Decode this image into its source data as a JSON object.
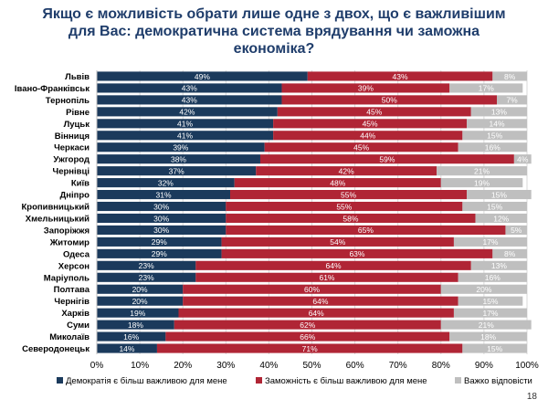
{
  "title_lines": [
    "Якщо є можливість обрати лише одне з двох, що є важливішим",
    "для Вас: демократична система врядування чи заможна",
    "економіка?"
  ],
  "page_number": "18",
  "colors": {
    "democracy": "#1b3a5c",
    "wealth": "#b02535",
    "hard": "#bfbfbf",
    "grid": "#d9d9d9"
  },
  "chart_data": {
    "type": "bar",
    "orientation": "horizontal",
    "stacked": true,
    "title": "Якщо є можливість обрати лише одне з двох, що є важливішим для Вас: демократична система врядування чи заможна економіка?",
    "categories": [
      "Львів",
      "Івано-Франківськ",
      "Тернопіль",
      "Рівне",
      "Луцьк",
      "Вінниця",
      "Черкаси",
      "Ужгород",
      "Чернівці",
      "Київ",
      "Дніпро",
      "Кропивницький",
      "Хмельницький",
      "Запоріжжя",
      "Житомир",
      "Одеса",
      "Херсон",
      "Маріуполь",
      "Полтава",
      "Чернігів",
      "Харків",
      "Суми",
      "Миколаїв",
      "Северодонецьк"
    ],
    "series": [
      {
        "name": "Демократія є більш важливою для мене",
        "values": [
          49,
          43,
          43,
          42,
          41,
          41,
          39,
          38,
          37,
          32,
          31,
          30,
          30,
          30,
          29,
          29,
          23,
          23,
          20,
          20,
          19,
          18,
          16,
          14
        ]
      },
      {
        "name": "Заможність є більш важливою для мене",
        "values": [
          43,
          39,
          50,
          45,
          45,
          44,
          45,
          59,
          42,
          48,
          55,
          55,
          58,
          65,
          54,
          63,
          64,
          61,
          60,
          64,
          64,
          62,
          66,
          71
        ]
      },
      {
        "name": "Важко відповісти",
        "values": [
          8,
          17,
          7,
          13,
          14,
          15,
          16,
          4,
          21,
          19,
          15,
          15,
          12,
          5,
          17,
          8,
          13,
          16,
          20,
          15,
          17,
          21,
          18,
          15
        ]
      }
    ],
    "x_ticks": [
      "0%",
      "10%",
      "20%",
      "30%",
      "40%",
      "50%",
      "60%",
      "70%",
      "80%",
      "90%",
      "100%"
    ],
    "xlim": [
      0,
      100
    ],
    "legend_position": "bottom"
  }
}
